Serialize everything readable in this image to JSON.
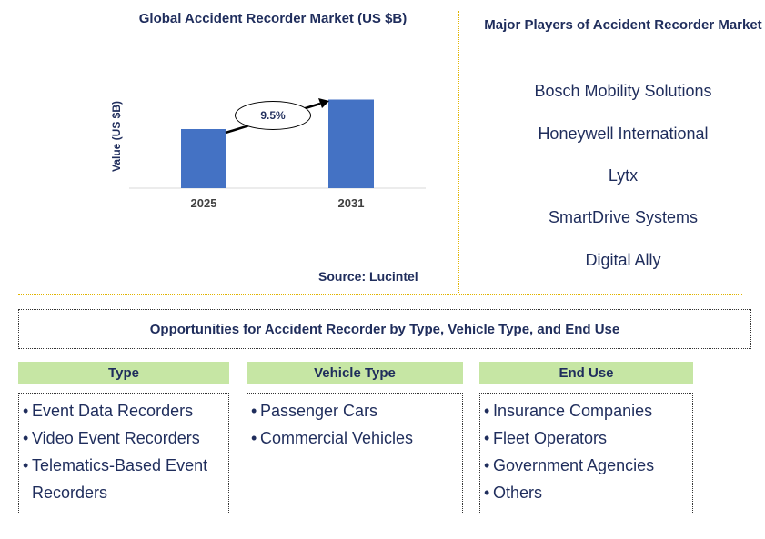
{
  "chart_data": {
    "type": "bar",
    "title": "Global Accident Recorder Market (US $B)",
    "ylabel": "Value (US $B)",
    "xlabel": "",
    "categories": [
      "2025",
      "2031"
    ],
    "values": [
      1.0,
      1.5
    ],
    "ylim": [
      0,
      1.6
    ],
    "annotation": "9.5%",
    "source": "Source: Lucintel",
    "bar_color": "#4472c4"
  },
  "players": {
    "title": "Major Players of Accident Recorder Market",
    "items": [
      "Bosch Mobility Solutions",
      "Honeywell International",
      "Lytx",
      "SmartDrive Systems",
      "Digital Ally"
    ]
  },
  "opportunities": {
    "title": "Opportunities for Accident Recorder by Type, Vehicle Type, and End Use",
    "columns": [
      {
        "heading": "Type",
        "items": [
          "Event Data Recorders",
          "Video Event Recorders",
          "Telematics-Based Event Recorders"
        ]
      },
      {
        "heading": "Vehicle Type",
        "items": [
          "Passenger Cars",
          "Commercial Vehicles"
        ]
      },
      {
        "heading": "End Use",
        "items": [
          "Insurance Companies",
          "Fleet Operators",
          "Government Agencies",
          "Others"
        ]
      }
    ]
  }
}
